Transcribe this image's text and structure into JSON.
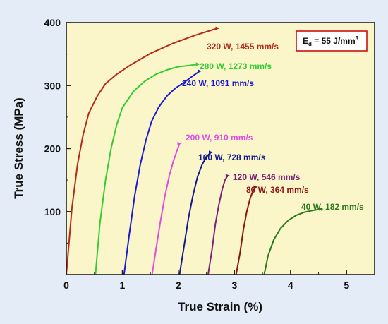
{
  "chart_data": {
    "type": "line",
    "xlabel": "True Strain (%)",
    "ylabel": "True Stress (MPa)",
    "xlim": [
      0,
      5.5
    ],
    "ylim": [
      0,
      400
    ],
    "xticks": [
      "0",
      "1",
      "2",
      "3",
      "4",
      "5"
    ],
    "yticks": [
      "100",
      "200",
      "300",
      "400"
    ],
    "grid": false,
    "background_color": "#fbf6c9",
    "annotation": {
      "main": "E",
      "sub": "d",
      "rest": " = 55 J/mm",
      "sup": "3"
    },
    "annotation_border_color": "#cc1111",
    "series": [
      {
        "name": "320 W, 1455 mm/s",
        "color": "#b52a1a",
        "x": [
          0.0,
          0.1,
          0.2,
          0.3,
          0.4,
          0.55,
          0.7,
          0.9,
          1.15,
          1.5,
          1.9,
          2.3,
          2.7
        ],
        "y": [
          0,
          105,
          175,
          222,
          256,
          283,
          303,
          318,
          333,
          351,
          367,
          380,
          391
        ]
      },
      {
        "name": "280 W, 1273 mm/s",
        "color": "#33cc33",
        "x": [
          0.52,
          0.6,
          0.7,
          0.8,
          0.9,
          1.0,
          1.2,
          1.4,
          1.6,
          1.8,
          2.0,
          2.2,
          2.35
        ],
        "y": [
          0,
          82,
          150,
          201,
          238,
          265,
          291,
          307,
          318,
          325,
          330,
          332,
          334
        ]
      },
      {
        "name": "240 W, 1091 mm/s",
        "color": "#1a1ad1",
        "x": [
          1.03,
          1.12,
          1.22,
          1.32,
          1.42,
          1.52,
          1.65,
          1.8,
          1.95,
          2.1,
          2.25,
          2.38
        ],
        "y": [
          0,
          62,
          125,
          175,
          213,
          243,
          266,
          284,
          296,
          305,
          315,
          323
        ]
      },
      {
        "name": "200 W, 910 mm/s",
        "color": "#e04de0",
        "x": [
          1.53,
          1.6,
          1.68,
          1.76,
          1.84,
          1.91,
          1.98,
          2.02
        ],
        "y": [
          0,
          40,
          85,
          125,
          158,
          180,
          198,
          208
        ]
      },
      {
        "name": "160 W, 728 mm/s",
        "color": "#141a8c",
        "x": [
          2.02,
          2.1,
          2.18,
          2.26,
          2.34,
          2.42,
          2.5,
          2.58
        ],
        "y": [
          0,
          45,
          90,
          126,
          155,
          174,
          187,
          194
        ]
      },
      {
        "name": "120 W, 546 mm/s",
        "color": "#7a2278",
        "x": [
          2.53,
          2.6,
          2.66,
          2.72,
          2.78,
          2.83,
          2.88
        ],
        "y": [
          0,
          40,
          80,
          110,
          135,
          150,
          157
        ]
      },
      {
        "name": "80 W, 364 mm/s",
        "color": "#8b1515",
        "x": [
          3.03,
          3.1,
          3.16,
          3.22,
          3.28,
          3.33,
          3.38
        ],
        "y": [
          0,
          35,
          72,
          100,
          121,
          133,
          139
        ]
      },
      {
        "name": "40 W, 182 mm/s",
        "color": "#2d7a1e",
        "x": [
          3.53,
          3.6,
          3.7,
          3.82,
          3.96,
          4.1,
          4.25,
          4.4,
          4.55
        ],
        "y": [
          0,
          30,
          55,
          73,
          86,
          94,
          99,
          102,
          104
        ]
      }
    ]
  }
}
